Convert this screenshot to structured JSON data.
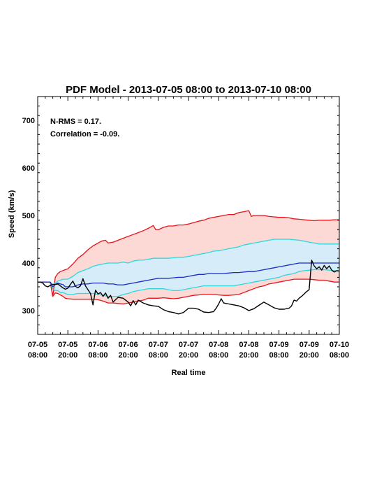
{
  "chart_data": {
    "type": "line",
    "title": "PDF Model - 2013-07-05 08:00 to 2013-07-10 08:00",
    "xlabel": "Real time",
    "ylabel": "Speed (km/s)",
    "xlim": [
      0,
      120
    ],
    "ylim": [
      250,
      750
    ],
    "x_units": "hours since 2013-07-05 08:00",
    "x_ticks": [
      {
        "value": 0,
        "line1": "07-05",
        "line2": "08:00"
      },
      {
        "value": 12,
        "line1": "07-05",
        "line2": "20:00"
      },
      {
        "value": 24,
        "line1": "07-06",
        "line2": "08:00"
      },
      {
        "value": 36,
        "line1": "07-06",
        "line2": "20:00"
      },
      {
        "value": 48,
        "line1": "07-07",
        "line2": "08:00"
      },
      {
        "value": 60,
        "line1": "07-07",
        "line2": "20:00"
      },
      {
        "value": 72,
        "line1": "07-08",
        "line2": "08:00"
      },
      {
        "value": 84,
        "line1": "07-08",
        "line2": "20:00"
      },
      {
        "value": 96,
        "line1": "07-09",
        "line2": "08:00"
      },
      {
        "value": 108,
        "line1": "07-09",
        "line2": "20:00"
      },
      {
        "value": 120,
        "line1": "07-10",
        "line2": "08:00"
      }
    ],
    "y_ticks": [
      300,
      400,
      500,
      600,
      700
    ],
    "annotations": [
      "N-RMS = 0.17.",
      "Correlation = -0.09."
    ],
    "colors": {
      "outer_band_fill": "#fcd9d4",
      "inner_band_fill": "#d6ecf9",
      "outer_line": "#e8121a",
      "inner_line": "#2ed8e0",
      "median_line": "#1b2bc8",
      "observed_line": "#000000"
    },
    "series": [
      {
        "role": "upper-outer",
        "x": [
          0,
          5,
          6,
          7,
          8,
          9,
          10,
          11,
          12,
          14,
          16,
          18,
          20,
          22,
          24,
          25,
          26,
          27,
          28,
          30,
          32,
          34,
          36,
          38,
          40,
          42,
          44,
          46,
          47,
          48,
          50,
          52,
          54,
          56,
          58,
          60,
          62,
          64,
          66,
          68,
          70,
          72,
          74,
          76,
          78,
          80,
          82,
          83,
          84,
          85,
          86,
          88,
          90,
          92,
          94,
          96,
          98,
          100,
          102,
          104,
          106,
          108,
          110,
          112,
          114,
          116,
          118,
          120
        ],
        "y": [
          360,
          360,
          330,
          370,
          378,
          382,
          384,
          386,
          388,
          398,
          410,
          418,
          428,
          436,
          442,
          445,
          447,
          448,
          442,
          444,
          448,
          452,
          456,
          460,
          464,
          468,
          473,
          479,
          470,
          470,
          475,
          478,
          478,
          480,
          480,
          482,
          485,
          488,
          490,
          494,
          496,
          498,
          500,
          502,
          502,
          506,
          508,
          509,
          510,
          498,
          500,
          500,
          500,
          498,
          497,
          496,
          496,
          495,
          493,
          492,
          491,
          490,
          489,
          490,
          490,
          490,
          491,
          491
        ]
      },
      {
        "role": "upper-inner",
        "x": [
          0,
          5,
          6,
          7,
          8,
          9,
          10,
          11,
          12,
          14,
          16,
          18,
          20,
          22,
          24,
          26,
          28,
          30,
          32,
          34,
          36,
          38,
          40,
          42,
          44,
          46,
          48,
          50,
          52,
          54,
          56,
          58,
          60,
          62,
          64,
          66,
          68,
          70,
          72,
          74,
          76,
          78,
          80,
          82,
          84,
          86,
          88,
          90,
          92,
          94,
          96,
          98,
          100,
          102,
          104,
          106,
          108,
          110,
          112,
          114,
          116,
          118,
          120
        ],
        "y": [
          360,
          360,
          355,
          358,
          362,
          364,
          366,
          366,
          366,
          372,
          380,
          384,
          388,
          393,
          396,
          398,
          400,
          400,
          400,
          402,
          400,
          404,
          406,
          406,
          408,
          410,
          410,
          410,
          410,
          411,
          412,
          412,
          414,
          416,
          418,
          420,
          422,
          425,
          426,
          428,
          430,
          432,
          434,
          438,
          440,
          442,
          444,
          446,
          448,
          450,
          450,
          450,
          450,
          449,
          448,
          446,
          444,
          442,
          440,
          440,
          440,
          440,
          440
        ]
      },
      {
        "role": "median",
        "x": [
          0,
          5,
          6,
          7,
          8,
          9,
          10,
          11,
          12,
          14,
          16,
          18,
          20,
          22,
          24,
          26,
          28,
          30,
          32,
          34,
          36,
          38,
          40,
          42,
          44,
          46,
          48,
          50,
          52,
          54,
          56,
          58,
          60,
          62,
          64,
          66,
          68,
          70,
          72,
          74,
          76,
          78,
          80,
          82,
          84,
          86,
          88,
          90,
          92,
          94,
          96,
          98,
          100,
          102,
          104,
          106,
          108,
          110,
          112,
          114,
          116,
          118,
          120
        ],
        "y": [
          360,
          360,
          350,
          355,
          358,
          356,
          355,
          350,
          350,
          350,
          354,
          356,
          356,
          358,
          358,
          358,
          356,
          356,
          354,
          354,
          356,
          358,
          360,
          362,
          364,
          366,
          368,
          368,
          368,
          369,
          370,
          370,
          372,
          374,
          376,
          376,
          378,
          378,
          378,
          378,
          379,
          380,
          380,
          381,
          382,
          382,
          384,
          386,
          388,
          390,
          392,
          394,
          396,
          398,
          400,
          400,
          400,
          400,
          400,
          400,
          400,
          400,
          400
        ]
      },
      {
        "role": "lower-inner",
        "x": [
          0,
          5,
          6,
          7,
          8,
          9,
          10,
          11,
          12,
          14,
          16,
          18,
          20,
          22,
          24,
          26,
          28,
          30,
          32,
          34,
          36,
          38,
          40,
          42,
          44,
          46,
          48,
          50,
          52,
          54,
          56,
          58,
          60,
          62,
          64,
          66,
          68,
          70,
          72,
          74,
          76,
          78,
          80,
          82,
          84,
          86,
          88,
          90,
          92,
          94,
          96,
          98,
          100,
          102,
          104,
          106,
          108,
          110,
          112,
          114,
          116,
          118,
          120
        ],
        "y": [
          360,
          360,
          345,
          342,
          342,
          338,
          338,
          336,
          334,
          334,
          336,
          336,
          336,
          336,
          334,
          332,
          330,
          330,
          330,
          334,
          336,
          340,
          342,
          344,
          346,
          346,
          346,
          346,
          344,
          342,
          342,
          344,
          346,
          348,
          350,
          352,
          352,
          352,
          352,
          352,
          352,
          352,
          354,
          356,
          358,
          360,
          362,
          364,
          366,
          368,
          370,
          374,
          376,
          378,
          382,
          384,
          385,
          386,
          386,
          386,
          385,
          384,
          384
        ]
      },
      {
        "role": "lower-outer",
        "x": [
          0,
          5,
          6,
          7,
          8,
          9,
          10,
          11,
          12,
          14,
          16,
          18,
          20,
          22,
          24,
          26,
          28,
          30,
          32,
          34,
          36,
          38,
          40,
          42,
          44,
          46,
          48,
          50,
          52,
          54,
          56,
          58,
          60,
          62,
          64,
          66,
          68,
          70,
          72,
          74,
          76,
          78,
          80,
          82,
          84,
          86,
          88,
          90,
          92,
          94,
          96,
          98,
          100,
          102,
          104,
          106,
          108,
          110,
          112,
          114,
          116,
          118,
          120
        ],
        "y": [
          360,
          360,
          330,
          337,
          336,
          333,
          330,
          326,
          325,
          324,
          324,
          324,
          324,
          324,
          323,
          320,
          316,
          316,
          315,
          314,
          316,
          318,
          320,
          322,
          326,
          326,
          326,
          327,
          326,
          325,
          326,
          328,
          330,
          332,
          333,
          334,
          334,
          334,
          333,
          332,
          332,
          333,
          334,
          338,
          342,
          346,
          350,
          352,
          356,
          358,
          360,
          362,
          364,
          366,
          366,
          366,
          366,
          365,
          364,
          364,
          362,
          360,
          360
        ]
      },
      {
        "role": "observed",
        "x": [
          0,
          1,
          2,
          3,
          4,
          5,
          6,
          7,
          8,
          9,
          10,
          11,
          12,
          13,
          14,
          15,
          16,
          17,
          18,
          19,
          20,
          21,
          22,
          23,
          24,
          25,
          26,
          27,
          28,
          29,
          30,
          32,
          34,
          36,
          37,
          38,
          39,
          40,
          42,
          44,
          46,
          48,
          50,
          52,
          54,
          56,
          58,
          60,
          62,
          64,
          66,
          68,
          70,
          71,
          72,
          73,
          74,
          76,
          78,
          80,
          82,
          84,
          86,
          88,
          90,
          92,
          94,
          96,
          98,
          100,
          101,
          102,
          103,
          104,
          105,
          106,
          107,
          108,
          109,
          110,
          111,
          112,
          113,
          114,
          115,
          116,
          117,
          118,
          119,
          120
        ],
        "y": [
          360,
          360,
          358,
          352,
          350,
          353,
          355,
          355,
          356,
          352,
          348,
          345,
          347,
          355,
          362,
          351,
          348,
          352,
          367,
          352,
          344,
          336,
          312,
          343,
          335,
          338,
          330,
          337,
          326,
          332,
          318,
          328,
          326,
          318,
          310,
          321,
          312,
          322,
          316,
          312,
          310,
          309,
          302,
          298,
          296,
          293,
          296,
          305,
          305,
          303,
          297,
          296,
          298,
          305,
          314,
          325,
          316,
          314,
          312,
          310,
          306,
          300,
          304,
          311,
          318,
          312,
          306,
          303,
          303,
          305,
          310,
          322,
          320,
          326,
          330,
          335,
          340,
          344,
          406,
          394,
          388,
          392,
          385,
          395,
          388,
          394,
          385,
          381,
          384,
          383
        ]
      }
    ]
  }
}
